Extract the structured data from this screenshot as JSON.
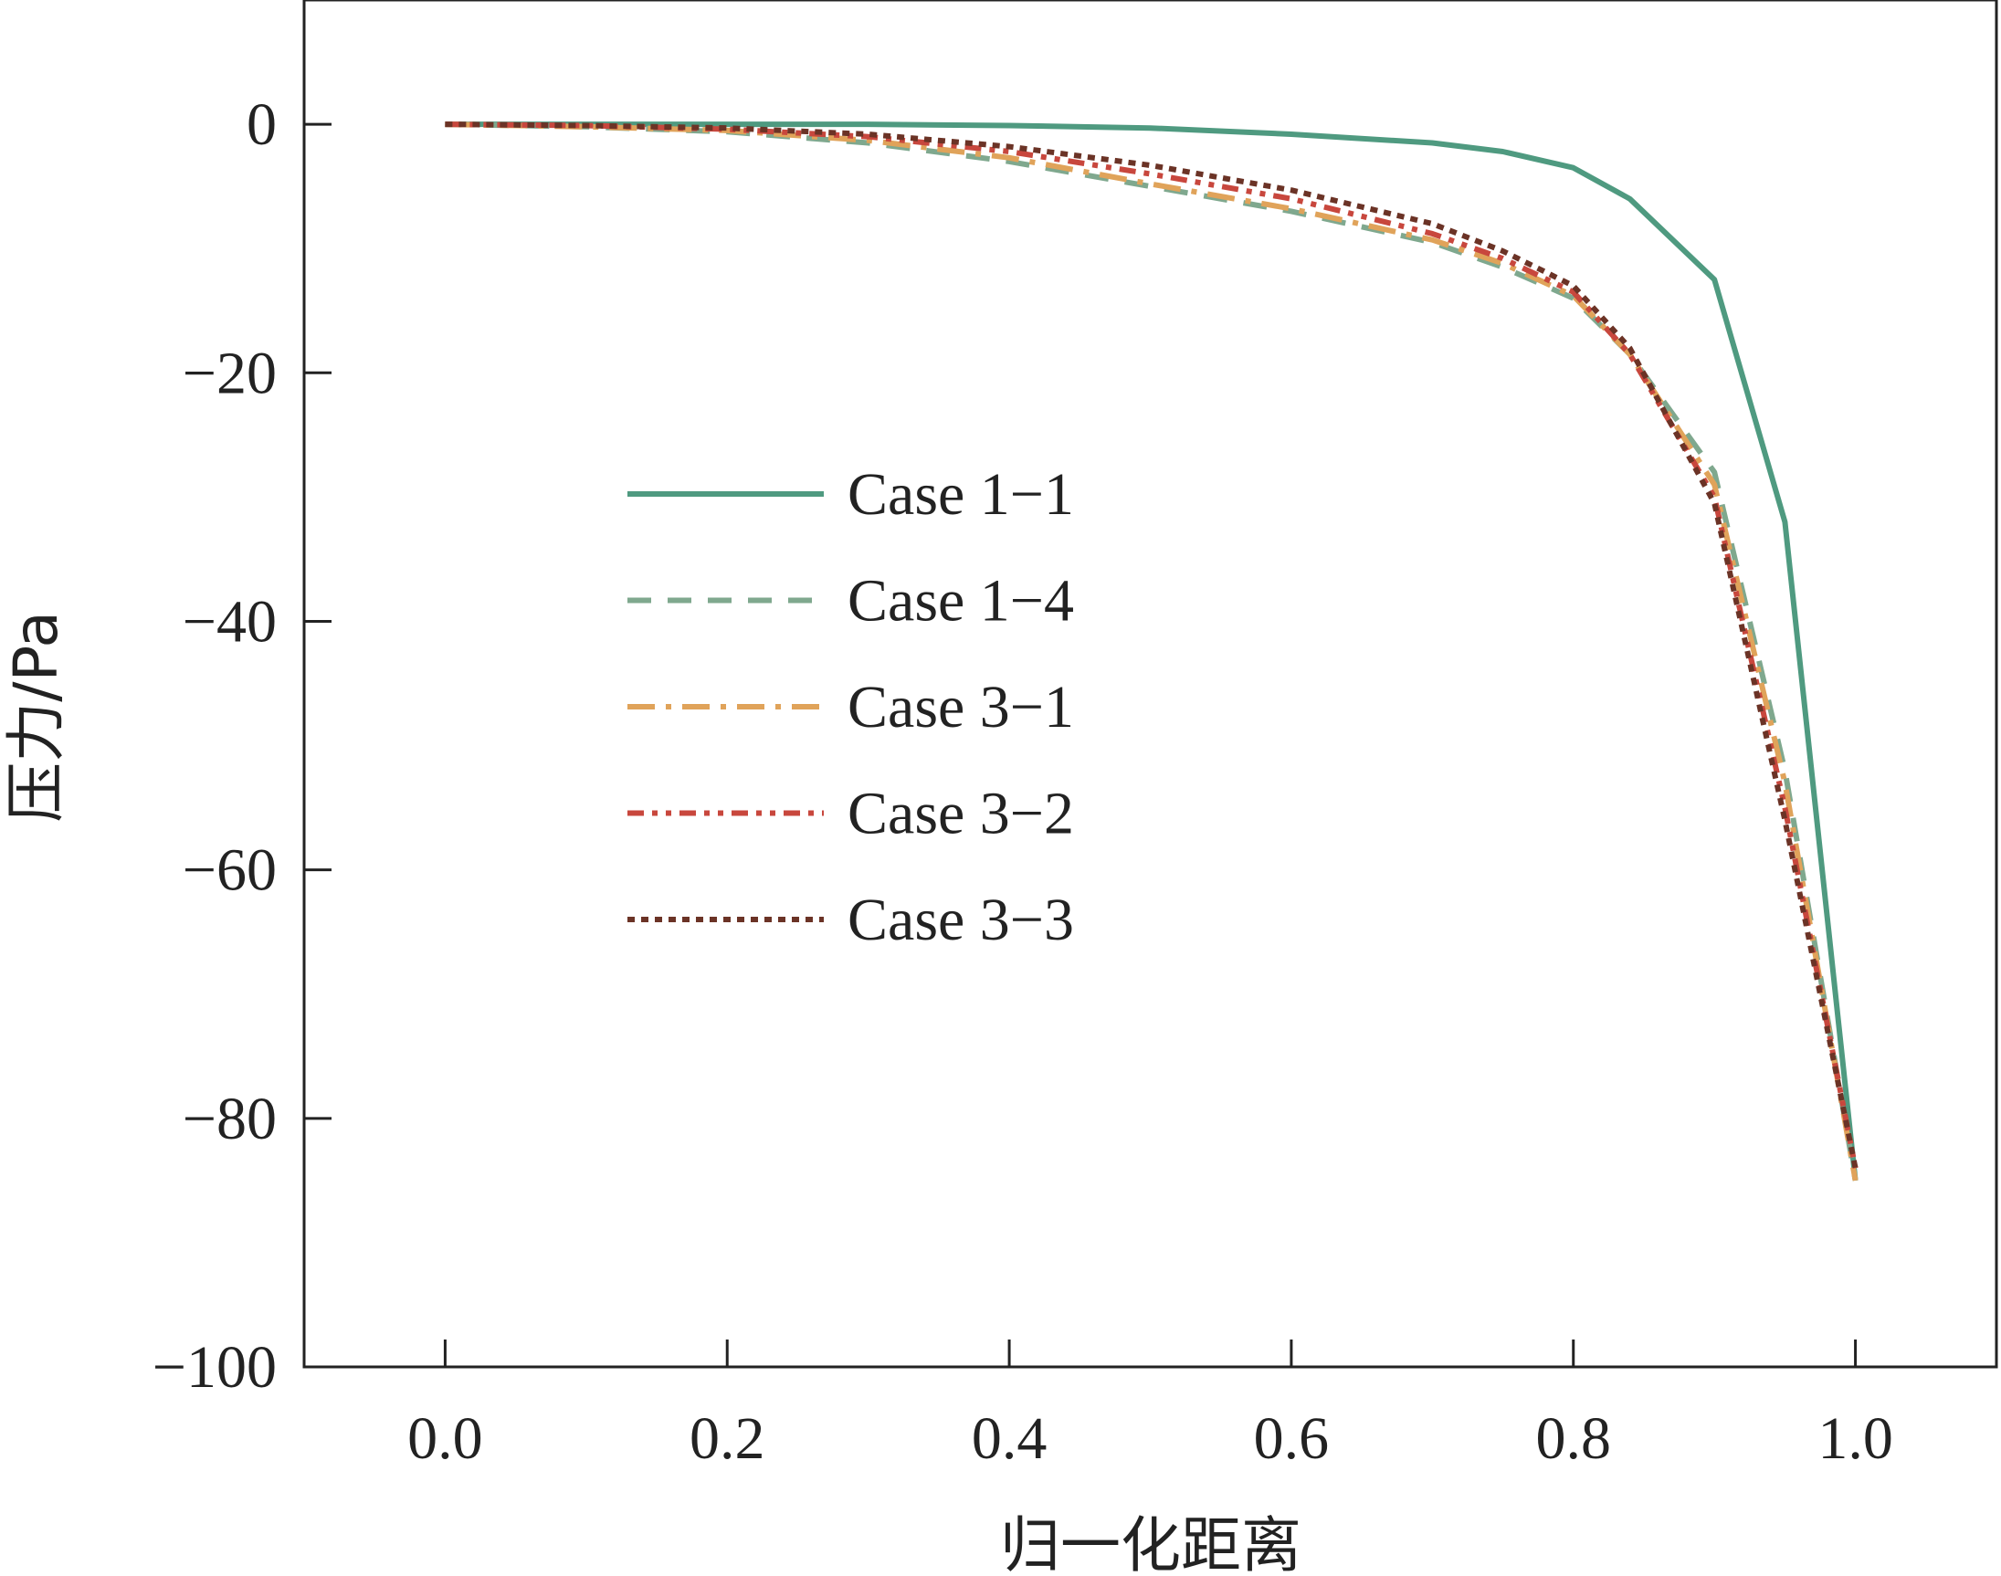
{
  "chart_data": {
    "type": "line",
    "title": "",
    "xlabel": "归一化距离",
    "ylabel": "压力/Pa",
    "xlim": [
      -0.1,
      1.1
    ],
    "ylim": [
      -100,
      10
    ],
    "xticks": [
      0.0,
      0.2,
      0.4,
      0.6,
      0.8,
      1.0
    ],
    "xtick_labels": [
      "0.0",
      "0.2",
      "0.4",
      "0.6",
      "0.8",
      "1.0"
    ],
    "yticks": [
      0,
      -20,
      -40,
      -60,
      -80,
      -100
    ],
    "ytick_labels": [
      "0",
      "−20",
      "−40",
      "−60",
      "−80",
      "−100"
    ],
    "grid": false,
    "legend_position": "center-left",
    "series": [
      {
        "name": "Case 1−1",
        "color": "#4f9a80",
        "style": "solid",
        "x": [
          0.0,
          0.1,
          0.2,
          0.3,
          0.4,
          0.5,
          0.6,
          0.7,
          0.75,
          0.8,
          0.84,
          0.9,
          0.95,
          1.0
        ],
        "y": [
          0.0,
          0.0,
          0.0,
          0.0,
          -0.1,
          -0.3,
          -0.8,
          -1.5,
          -2.2,
          -3.5,
          -6.0,
          -12.5,
          -32.0,
          -85.0
        ]
      },
      {
        "name": "Case 1−4",
        "color": "#7fa88e",
        "style": "dashed",
        "x": [
          0.0,
          0.1,
          0.2,
          0.3,
          0.4,
          0.5,
          0.6,
          0.7,
          0.75,
          0.8,
          0.84,
          0.9,
          0.95,
          1.0
        ],
        "y": [
          0.0,
          -0.2,
          -0.6,
          -1.5,
          -3.0,
          -5.0,
          -7.0,
          -9.5,
          -11.5,
          -14.0,
          -18.5,
          -28.0,
          -52.0,
          -85.0
        ]
      },
      {
        "name": "Case 3−1",
        "color": "#e0a35a",
        "style": "dashdot",
        "x": [
          0.0,
          0.1,
          0.2,
          0.3,
          0.4,
          0.5,
          0.6,
          0.7,
          0.75,
          0.8,
          0.84,
          0.9,
          0.95,
          1.0
        ],
        "y": [
          0.0,
          -0.2,
          -0.5,
          -1.3,
          -2.7,
          -4.8,
          -6.8,
          -9.3,
          -11.2,
          -13.8,
          -18.5,
          -29.0,
          -53.0,
          -85.0
        ]
      },
      {
        "name": "Case 3−2",
        "color": "#c8473d",
        "style": "dashdotdot",
        "x": [
          0.0,
          0.1,
          0.2,
          0.3,
          0.4,
          0.5,
          0.6,
          0.7,
          0.75,
          0.8,
          0.84,
          0.9,
          0.95,
          1.0
        ],
        "y": [
          0.0,
          -0.1,
          -0.4,
          -1.0,
          -2.2,
          -4.0,
          -6.0,
          -8.8,
          -10.8,
          -13.5,
          -18.5,
          -30.0,
          -55.0,
          -84.0
        ]
      },
      {
        "name": "Case 3−3",
        "color": "#6b3326",
        "style": "dotted",
        "x": [
          0.0,
          0.1,
          0.2,
          0.3,
          0.4,
          0.5,
          0.6,
          0.7,
          0.75,
          0.8,
          0.84,
          0.9,
          0.95,
          1.0
        ],
        "y": [
          0.0,
          -0.1,
          -0.3,
          -0.8,
          -1.8,
          -3.3,
          -5.3,
          -8.0,
          -10.2,
          -13.0,
          -18.0,
          -30.5,
          -56.0,
          -84.0
        ]
      }
    ]
  }
}
